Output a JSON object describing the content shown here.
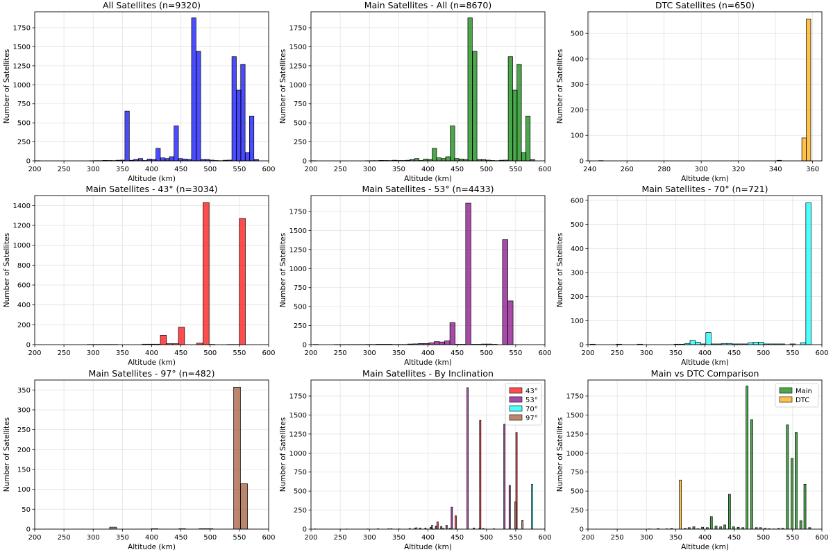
{
  "chart_data": [
    {
      "type": "bar",
      "title": "All Satellites (n=9320)",
      "xlabel": "Altitude (km)",
      "ylabel": "Number of Satellites",
      "xlim": [
        200,
        600
      ],
      "ylim": [
        0,
        1960
      ],
      "xticks": [
        200,
        250,
        300,
        350,
        400,
        450,
        500,
        550,
        600
      ],
      "yticks": [
        0,
        250,
        500,
        750,
        1000,
        1250,
        1500,
        1750
      ],
      "series": [
        {
          "name": "All",
          "color": "#0000ff",
          "bin_width": 7.6,
          "x": [
            205,
            213,
            221,
            228,
            236,
            244,
            251,
            259,
            267,
            274,
            282,
            289,
            297,
            305,
            312,
            320,
            328,
            335,
            343,
            350,
            358,
            366,
            373,
            381,
            388,
            396,
            404,
            411,
            419,
            427,
            434,
            442,
            449,
            457,
            465,
            472,
            480,
            488,
            495,
            503,
            510,
            518,
            526,
            533,
            541,
            549,
            556,
            564,
            571,
            579
          ],
          "values": [
            2,
            0,
            0,
            0,
            0,
            0,
            0,
            0,
            0,
            0,
            0,
            0,
            2,
            3,
            3,
            6,
            5,
            4,
            8,
            10,
            655,
            8,
            20,
            30,
            5,
            25,
            20,
            165,
            40,
            30,
            55,
            460,
            30,
            25,
            20,
            1880,
            1440,
            20,
            20,
            10,
            5,
            3,
            8,
            10,
            1370,
            930,
            1270,
            110,
            590,
            20
          ]
        }
      ]
    },
    {
      "type": "bar",
      "title": "Main Satellites - All (n=8670)",
      "xlabel": "Altitude (km)",
      "ylabel": "Number of Satellites",
      "xlim": [
        200,
        600
      ],
      "ylim": [
        0,
        1960
      ],
      "xticks": [
        200,
        250,
        300,
        350,
        400,
        450,
        500,
        550,
        600
      ],
      "yticks": [
        0,
        250,
        500,
        750,
        1000,
        1250,
        1500,
        1750
      ],
      "series": [
        {
          "name": "Main",
          "color": "#008000",
          "bin_width": 7.6,
          "x": [
            205,
            213,
            221,
            228,
            236,
            244,
            251,
            259,
            267,
            274,
            282,
            289,
            297,
            305,
            312,
            320,
            328,
            335,
            343,
            350,
            358,
            366,
            373,
            381,
            388,
            396,
            404,
            411,
            419,
            427,
            434,
            442,
            449,
            457,
            465,
            472,
            480,
            488,
            495,
            503,
            510,
            518,
            526,
            533,
            541,
            549,
            556,
            564,
            571,
            579
          ],
          "values": [
            2,
            0,
            0,
            0,
            0,
            0,
            0,
            0,
            0,
            0,
            0,
            0,
            2,
            3,
            3,
            6,
            5,
            4,
            8,
            5,
            5,
            8,
            20,
            30,
            5,
            25,
            20,
            165,
            40,
            30,
            55,
            460,
            30,
            25,
            20,
            1880,
            1440,
            20,
            20,
            10,
            5,
            3,
            8,
            10,
            1370,
            930,
            1270,
            110,
            590,
            20
          ]
        }
      ]
    },
    {
      "type": "bar",
      "title": "DTC Satellites (n=650)",
      "xlabel": "Altitude (km)",
      "ylabel": "Number of Satellites",
      "xlim": [
        239,
        365
      ],
      "ylim": [
        0,
        585
      ],
      "xticks": [
        240,
        260,
        280,
        300,
        320,
        340,
        360
      ],
      "yticks": [
        0,
        100,
        200,
        300,
        400,
        500
      ],
      "series": [
        {
          "name": "DTC",
          "color": "#ffa500",
          "bin_width": 2.4,
          "x": [
            246,
            342,
            355.4,
            357.8
          ],
          "values": [
            1,
            2,
            90,
            557
          ]
        }
      ]
    },
    {
      "type": "bar",
      "title": "Main Satellites - 43° (n=3034)",
      "xlabel": "Altitude (km)",
      "ylabel": "Number of Satellites",
      "xlim": [
        200,
        600
      ],
      "ylim": [
        0,
        1500
      ],
      "xticks": [
        200,
        250,
        300,
        350,
        400,
        450,
        500,
        550,
        600
      ],
      "yticks": [
        0,
        200,
        400,
        600,
        800,
        1000,
        1200,
        1400
      ],
      "series": [
        {
          "name": "43°",
          "color": "#ff0000",
          "bin_width": 10.4,
          "x": [
            295,
            305,
            316,
            326,
            337,
            347,
            357,
            368,
            378,
            389,
            399,
            409,
            420,
            430,
            441,
            451,
            462,
            472,
            482,
            493,
            503,
            514,
            524,
            534,
            545,
            555
          ],
          "values": [
            2,
            2,
            2,
            2,
            2,
            0,
            0,
            0,
            0,
            5,
            5,
            5,
            95,
            10,
            10,
            175,
            0,
            0,
            15,
            1430,
            3,
            0,
            0,
            2,
            2,
            1270
          ]
        }
      ]
    },
    {
      "type": "bar",
      "title": "Main Satellites - 53° (n=4433)",
      "xlabel": "Altitude (km)",
      "ylabel": "Number of Satellites",
      "xlim": [
        200,
        600
      ],
      "ylim": [
        0,
        1960
      ],
      "xticks": [
        200,
        250,
        300,
        350,
        400,
        450,
        500,
        550,
        600
      ],
      "yticks": [
        0,
        250,
        500,
        750,
        1000,
        1250,
        1500,
        1750
      ],
      "series": [
        {
          "name": "53°",
          "color": "#800080",
          "bin_width": 9.0,
          "x": [
            208,
            217,
            226,
            235,
            244,
            253,
            262,
            271,
            280,
            289,
            298,
            307,
            316,
            325,
            334,
            343,
            352,
            361,
            370,
            379,
            388,
            397,
            406,
            415,
            424,
            433,
            442,
            451,
            460,
            469,
            478,
            487,
            496,
            505,
            514,
            523,
            532,
            541
          ],
          "values": [
            3,
            0,
            0,
            0,
            2,
            2,
            2,
            2,
            2,
            2,
            3,
            3,
            5,
            5,
            5,
            3,
            3,
            3,
            8,
            10,
            15,
            15,
            25,
            40,
            35,
            50,
            290,
            5,
            5,
            1860,
            5,
            5,
            8,
            8,
            5,
            0,
            1380,
            575
          ]
        }
      ]
    },
    {
      "type": "bar",
      "title": "Main Satellites - 70° (n=721)",
      "xlabel": "Altitude (km)",
      "ylabel": "Number of Satellites",
      "xlim": [
        200,
        600
      ],
      "ylim": [
        0,
        620
      ],
      "xticks": [
        200,
        250,
        300,
        350,
        400,
        450,
        500,
        550,
        600
      ],
      "yticks": [
        0,
        100,
        200,
        300,
        400,
        500,
        600
      ],
      "series": [
        {
          "name": "70°",
          "color": "#00ffff",
          "bin_width": 9.0,
          "x": [
            208,
            217,
            226,
            235,
            244,
            253,
            262,
            271,
            280,
            289,
            298,
            307,
            316,
            325,
            334,
            343,
            352,
            361,
            370,
            379,
            388,
            397,
            406,
            415,
            424,
            433,
            442,
            451,
            460,
            469,
            478,
            487,
            496,
            505,
            514,
            523,
            532,
            541,
            550,
            559,
            568,
            577
          ],
          "values": [
            2,
            0,
            0,
            0,
            0,
            2,
            0,
            0,
            0,
            2,
            0,
            0,
            0,
            0,
            0,
            0,
            2,
            2,
            5,
            18,
            10,
            3,
            50,
            3,
            3,
            5,
            5,
            3,
            3,
            3,
            8,
            10,
            10,
            3,
            3,
            3,
            3,
            0,
            3,
            0,
            8,
            590
          ]
        }
      ]
    },
    {
      "type": "bar",
      "title": "Main Satellites - 97° (n=482)",
      "xlabel": "Altitude (km)",
      "ylabel": "Number of Satellites",
      "xlim": [
        200,
        600
      ],
      "ylim": [
        0,
        375
      ],
      "xticks": [
        200,
        250,
        300,
        350,
        400,
        450,
        500,
        550,
        600
      ],
      "yticks": [
        0,
        50,
        100,
        150,
        200,
        250,
        300,
        350
      ],
      "series": [
        {
          "name": "97°",
          "color": "#a0522d",
          "bin_width": 11.8,
          "x": [
            334,
            405,
            452,
            487,
            499,
            546,
            558
          ],
          "values": [
            5,
            1,
            1,
            1,
            1,
            357,
            114
          ]
        }
      ]
    },
    {
      "type": "bar",
      "title": "Main Satellites - By Inclination",
      "xlabel": "Altitude (km)",
      "ylabel": "Number of Satellites",
      "xlim": [
        200,
        600
      ],
      "ylim": [
        0,
        1960
      ],
      "xticks": [
        200,
        250,
        300,
        350,
        400,
        450,
        500,
        550,
        600
      ],
      "yticks": [
        0,
        250,
        500,
        750,
        1000,
        1250,
        1500,
        1750
      ],
      "legend": "top-right",
      "bar_width": 2.4,
      "series": [
        {
          "name": "43°",
          "color": "#ff0000",
          "offset": -3.6,
          "x": [
            410,
            420,
            430,
            441,
            451,
            482,
            493,
            555
          ],
          "values": [
            8,
            95,
            10,
            10,
            175,
            15,
            1430,
            1270
          ]
        },
        {
          "name": "53°",
          "color": "#800080",
          "offset": -1.2,
          "x": [
            208,
            262,
            298,
            316,
            334,
            352,
            370,
            379,
            388,
            397,
            406,
            415,
            424,
            433,
            442,
            469,
            496,
            514,
            532,
            541
          ],
          "values": [
            3,
            2,
            3,
            5,
            5,
            3,
            8,
            10,
            15,
            15,
            25,
            40,
            35,
            50,
            290,
            1860,
            8,
            5,
            1380,
            575
          ]
        },
        {
          "name": "70°",
          "color": "#00ffff",
          "offset": 1.2,
          "x": [
            379,
            406,
            487,
            577
          ],
          "values": [
            18,
            50,
            10,
            590
          ]
        },
        {
          "name": "97°",
          "color": "#a0522d",
          "offset": 3.6,
          "x": [
            334,
            405,
            546,
            558
          ],
          "values": [
            5,
            1,
            357,
            114
          ]
        }
      ]
    },
    {
      "type": "bar",
      "title": "Main vs DTC Comparison",
      "xlabel": "Altitude (km)",
      "ylabel": "Number of Satellites",
      "xlim": [
        200,
        600
      ],
      "ylim": [
        0,
        1960
      ],
      "xticks": [
        200,
        250,
        300,
        350,
        400,
        450,
        500,
        550,
        600
      ],
      "yticks": [
        0,
        250,
        500,
        750,
        1000,
        1250,
        1500,
        1750
      ],
      "legend": "top-right",
      "bar_width": 3.6,
      "series": [
        {
          "name": "Main",
          "color": "#008000",
          "offset": 0,
          "x": [
            305,
            320,
            335,
            343,
            366,
            373,
            381,
            388,
            396,
            404,
            411,
            419,
            427,
            434,
            442,
            449,
            457,
            465,
            472,
            480,
            488,
            495,
            503,
            510,
            518,
            526,
            533,
            541,
            549,
            556,
            564,
            571,
            579
          ],
          "values": [
            3,
            6,
            4,
            8,
            8,
            20,
            30,
            5,
            25,
            20,
            165,
            40,
            30,
            55,
            460,
            30,
            25,
            20,
            1880,
            1440,
            20,
            20,
            10,
            5,
            3,
            8,
            10,
            1370,
            930,
            1270,
            110,
            590,
            20
          ]
        },
        {
          "name": "DTC",
          "color": "#ffa500",
          "offset": 0,
          "x": [
            358
          ],
          "values": [
            645
          ]
        }
      ]
    }
  ]
}
